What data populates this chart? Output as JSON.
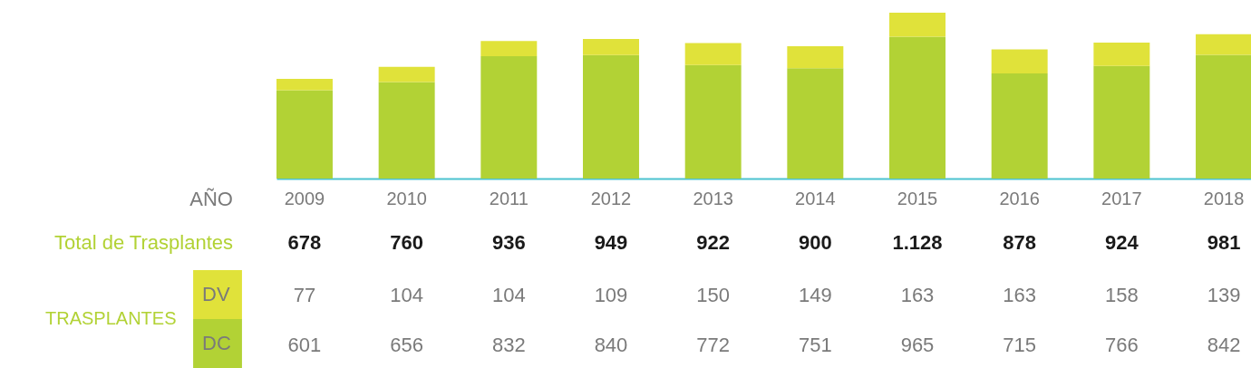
{
  "chart_data": {
    "type": "bar",
    "stacked": true,
    "xlabel": "AÑO",
    "legend_title": "TRASPLANTES",
    "legend": "bottom left",
    "data_labels": true,
    "annotations": [
      "Total de Trasplantes"
    ],
    "categories": [
      "2009",
      "2010",
      "2011",
      "2012",
      "2013",
      "2014",
      "2015",
      "2016",
      "2017",
      "2018"
    ],
    "totals": [
      "678",
      "760",
      "936",
      "949",
      "922",
      "900",
      "1.128",
      "878",
      "924",
      "981"
    ],
    "series": [
      {
        "name": "DC",
        "color": "#b2d235",
        "values": [
          601,
          656,
          832,
          840,
          772,
          751,
          965,
          715,
          766,
          842
        ]
      },
      {
        "name": "DV",
        "color": "#e0e23a",
        "values": [
          77,
          104,
          104,
          109,
          150,
          149,
          163,
          163,
          158,
          139
        ]
      }
    ]
  }
}
